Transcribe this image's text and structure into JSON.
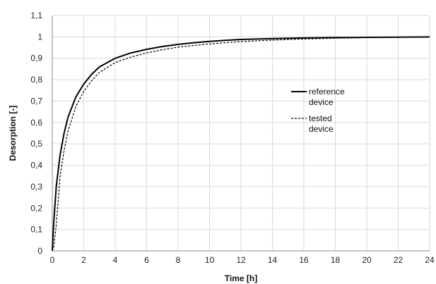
{
  "chart_data": {
    "type": "line",
    "xlabel": "Time [h]",
    "ylabel": "Desorption [-]",
    "xlim": [
      0,
      24
    ],
    "ylim": [
      0,
      1.1
    ],
    "x_ticks": [
      0,
      2,
      4,
      6,
      8,
      10,
      12,
      14,
      16,
      18,
      20,
      22,
      24
    ],
    "x_tick_labels": [
      "0",
      "2",
      "4",
      "6",
      "8",
      "10",
      "12",
      "14",
      "16",
      "18",
      "20",
      "22",
      "24"
    ],
    "y_ticks": [
      0,
      0.1,
      0.2,
      0.3,
      0.4,
      0.5,
      0.6,
      0.7,
      0.8,
      0.9,
      1.0,
      1.1
    ],
    "y_tick_labels": [
      "0",
      "0,1",
      "0,2",
      "0,3",
      "0,4",
      "0,5",
      "0,6",
      "0,7",
      "0,8",
      "0,9",
      "1",
      "1,1"
    ],
    "grid": true,
    "legend_position": "center-right",
    "series": [
      {
        "name": "reference device",
        "legend_lines": [
          "reference",
          "device"
        ],
        "style": "solid",
        "color": "#000000",
        "x": [
          0,
          0.1,
          0.25,
          0.5,
          0.75,
          1,
          1.5,
          2,
          2.5,
          3,
          4,
          5,
          6,
          7,
          8,
          9,
          10,
          11,
          12,
          14,
          16,
          18,
          20,
          22,
          24
        ],
        "y": [
          0,
          0.14,
          0.3,
          0.45,
          0.55,
          0.625,
          0.72,
          0.78,
          0.825,
          0.86,
          0.9,
          0.925,
          0.942,
          0.955,
          0.965,
          0.973,
          0.979,
          0.984,
          0.988,
          0.992,
          0.995,
          0.997,
          0.998,
          0.999,
          1.0
        ]
      },
      {
        "name": "tested device",
        "legend_lines": [
          "tested",
          "device"
        ],
        "style": "dashed",
        "color": "#000000",
        "x": [
          0,
          0.1,
          0.25,
          0.5,
          0.75,
          1,
          1.5,
          2,
          2.5,
          3,
          4,
          5,
          6,
          7,
          8,
          9,
          10,
          11,
          12,
          14,
          16,
          18,
          20,
          22,
          24
        ],
        "y": [
          0,
          0.02,
          0.12,
          0.35,
          0.47,
          0.56,
          0.675,
          0.745,
          0.795,
          0.835,
          0.88,
          0.906,
          0.925,
          0.94,
          0.952,
          0.96,
          0.967,
          0.973,
          0.978,
          0.985,
          0.99,
          0.994,
          0.997,
          0.999,
          1.0
        ]
      }
    ]
  }
}
